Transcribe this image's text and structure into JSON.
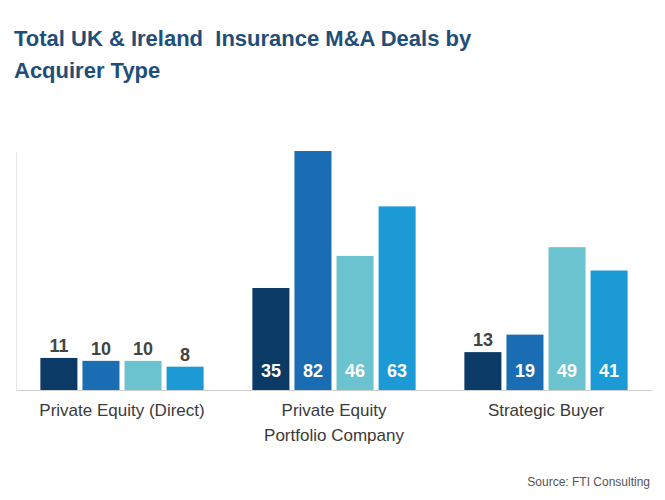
{
  "chart_data": {
    "type": "bar",
    "title": "Total UK & Ireland  Insurance M&A Deals by\nAcquirer Type",
    "categories": [
      "Private Equity (Direct)",
      "Private Equity\nPortfolio Company",
      "Strategic Buyer"
    ],
    "series": [
      {
        "color": "#0b3a66",
        "values": [
          11,
          35,
          13
        ]
      },
      {
        "color": "#1a6db3",
        "values": [
          10,
          82,
          19
        ]
      },
      {
        "color": "#6bc3cf",
        "values": [
          10,
          46,
          49
        ]
      },
      {
        "color": "#1c9ad6",
        "values": [
          8,
          63,
          41
        ]
      }
    ],
    "ylim": [
      0,
      82
    ],
    "yticks": [
      0
    ],
    "grid": false,
    "data_labels": true,
    "tick_labels": "x",
    "source": "Source: FTI Consulting"
  }
}
